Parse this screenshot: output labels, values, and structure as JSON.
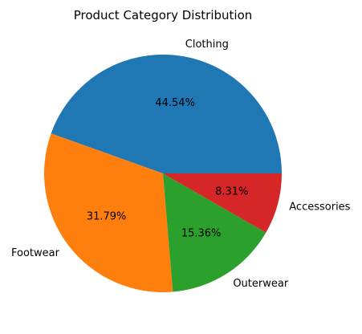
{
  "chart_data": {
    "type": "pie",
    "title": "Product Category Distribution",
    "categories": [
      "Clothing",
      "Footwear",
      "Outerwear",
      "Accessories"
    ],
    "values": [
      44.54,
      31.79,
      15.36,
      8.31
    ],
    "value_labels": [
      "44.54%",
      "31.79%",
      "15.36%",
      "8.31%"
    ],
    "colors": [
      "#1f77b4",
      "#ff7f0e",
      "#2ca02c",
      "#d62728"
    ],
    "start_angle_deg": 0,
    "direction": "counterclockwise",
    "legend": "none"
  }
}
